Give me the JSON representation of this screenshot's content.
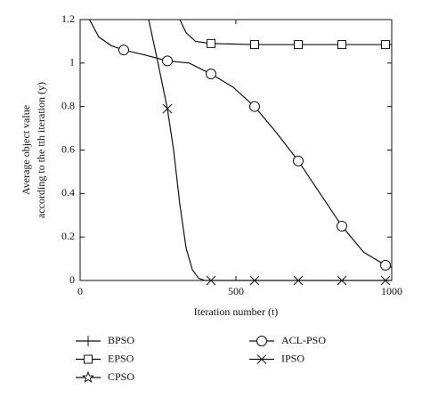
{
  "chart_data": {
    "type": "line",
    "xlabel": "Iteration number (t)",
    "ylabel": [
      "Average object value",
      "according to the tth iteration (y)"
    ],
    "xlim": [
      0,
      1000
    ],
    "xticks": [
      0,
      500,
      1000
    ],
    "ylim": [
      0,
      1.2
    ],
    "yticks": [
      0,
      0.2,
      0.4,
      0.6,
      0.8,
      1,
      1.2
    ],
    "color": "#111111",
    "series": [
      {
        "name": "BPSO",
        "marker": "plus"
      },
      {
        "name": "EPSO",
        "marker": "square",
        "x": [
          320,
          340,
          370,
          420,
          560,
          700,
          840,
          980,
          1000
        ],
        "values": [
          1.2,
          1.14,
          1.1,
          1.09,
          1.085,
          1.085,
          1.085,
          1.085,
          1.085
        ]
      },
      {
        "name": "CPSO",
        "marker": "star"
      },
      {
        "name": "ACL-PSO",
        "marker": "circle",
        "x": [
          30,
          60,
          100,
          140,
          200,
          280,
          350,
          420,
          490,
          560,
          630,
          700,
          770,
          840,
          910,
          980,
          1000
        ],
        "values": [
          1.2,
          1.12,
          1.08,
          1.06,
          1.04,
          1.01,
          1.0,
          0.95,
          0.89,
          0.8,
          0.68,
          0.55,
          0.4,
          0.25,
          0.13,
          0.07,
          0.06
        ]
      },
      {
        "name": "IPSO",
        "marker": "x",
        "x": [
          220,
          250,
          280,
          300,
          320,
          340,
          360,
          380,
          400,
          420,
          560,
          700,
          840,
          980,
          1000
        ],
        "values": [
          1.2,
          1.0,
          0.79,
          0.6,
          0.35,
          0.15,
          0.05,
          0.01,
          0,
          0,
          0,
          0,
          0,
          0,
          0
        ]
      }
    ]
  }
}
